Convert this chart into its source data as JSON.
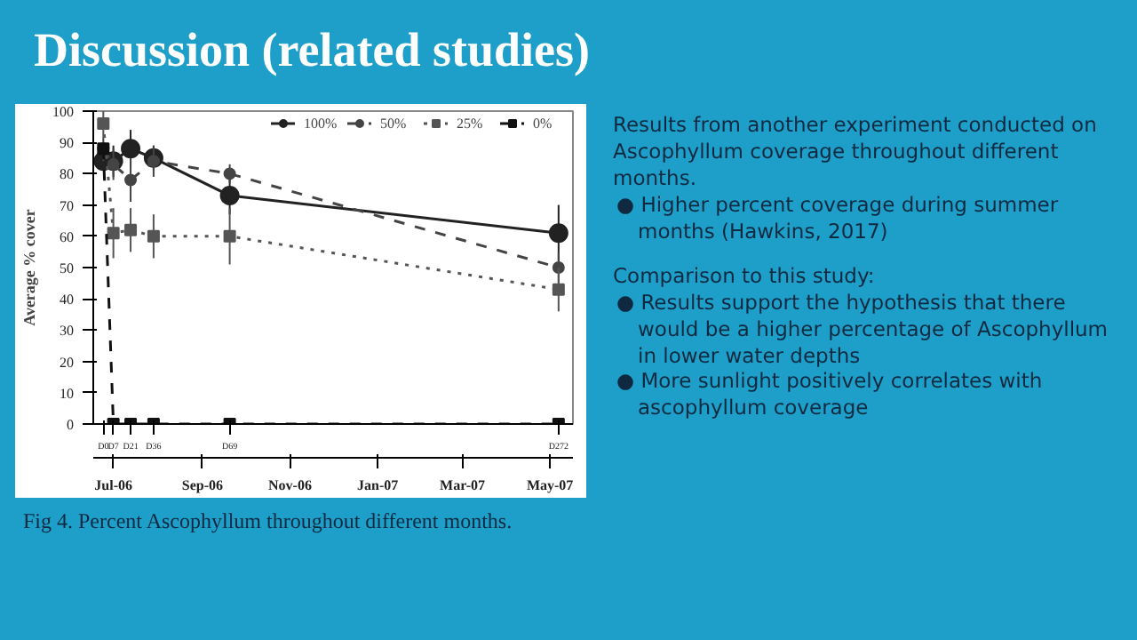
{
  "chart_data": {
    "type": "line",
    "title": "Discussion (related studies)",
    "ylabel": "Average % cover",
    "x": [
      "2006-06-24",
      "2006-07-01",
      "2006-07-13",
      "2006-07-29",
      "2006-09-20",
      "2007-05-07"
    ],
    "xlim": [
      "2006-06-17",
      "2007-05-17"
    ],
    "xticks": [
      {
        "value": "2006-07-01",
        "label": "Jul-06"
      },
      {
        "value": "2006-09-01",
        "label": "Sep-06"
      },
      {
        "value": "2006-11-01",
        "label": "Nov-06"
      },
      {
        "value": "2007-01-01",
        "label": "Jan-07"
      },
      {
        "value": "2007-03-01",
        "label": "Mar-07"
      },
      {
        "value": "2007-05-01",
        "label": "May-07"
      }
    ],
    "ylim": [
      0,
      100
    ],
    "yticks": [
      0,
      10,
      20,
      30,
      40,
      50,
      60,
      70,
      80,
      90,
      100
    ],
    "grid": false,
    "legend": "top right",
    "series": [
      {
        "name": "100%",
        "color": "#222222",
        "marker": "circle",
        "line_style": "solid",
        "values": [
          84,
          84,
          88,
          85,
          73,
          61
        ],
        "errors": [
          3,
          5,
          6,
          4,
          6,
          9
        ]
      },
      {
        "name": "50%",
        "color": "#444444",
        "marker": "circle",
        "line_style": "dashed",
        "values": [
          88,
          83,
          78,
          84,
          80,
          50
        ],
        "errors": [
          4,
          5,
          7,
          5,
          3,
          5
        ]
      },
      {
        "name": "25%",
        "color": "#555555",
        "marker": "square",
        "line_style": "dotted",
        "values": [
          96,
          61,
          62,
          60,
          60,
          43
        ],
        "errors": [
          4,
          8,
          7,
          7,
          9,
          7
        ]
      },
      {
        "name": "0%",
        "color": "#111111",
        "marker": "square",
        "line_style": "dashed",
        "values": [
          88,
          0,
          0,
          0,
          0,
          0
        ]
      }
    ],
    "annotations": [
      {
        "text": "D0",
        "x": "2006-06-24"
      },
      {
        "text": "D7",
        "x": "2006-07-01"
      },
      {
        "text": "D21",
        "x": "2006-07-13"
      },
      {
        "text": "D36",
        "x": "2006-07-29"
      },
      {
        "text": "D69",
        "x": "2006-09-20"
      },
      {
        "text": "D272",
        "x": "2007-05-07"
      },
      "Results from another experiment conducted on Ascophyllum coverage throughout different months.",
      "● Higher percent coverage during summer months (Hawkins, 2017)",
      "Comparison to this study:",
      "● Results support the hypothesis that there would be a higher percentage of Ascophyllum in lower water depths",
      "● More sunlight positively correlates with ascophyllum coverage",
      "Fig 4. Percent Ascophyllum throughout different months."
    ]
  }
}
